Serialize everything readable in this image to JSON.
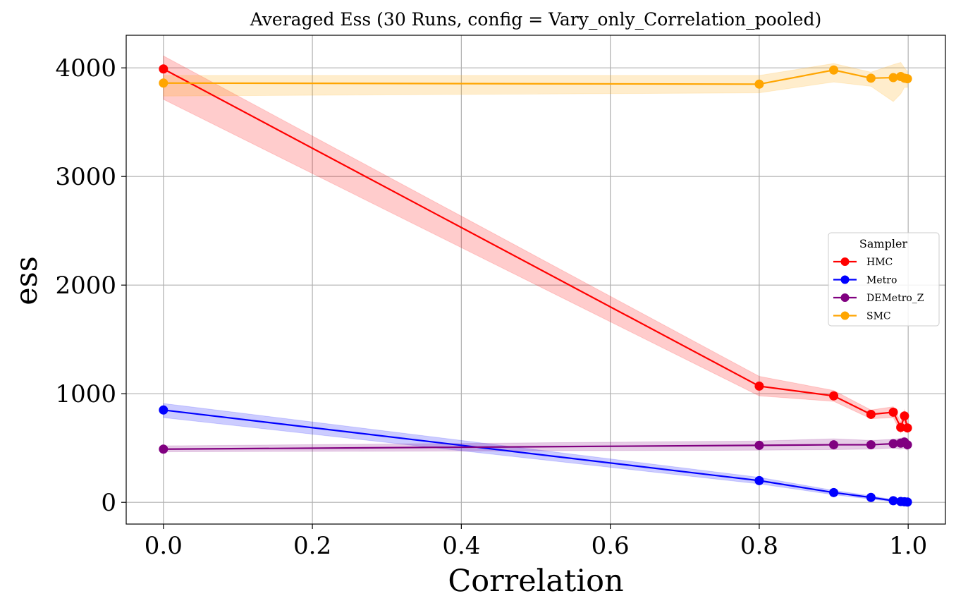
{
  "chart_data": {
    "type": "line",
    "title": "Averaged Ess (30 Runs, config = Vary_only_Correlation_pooled)",
    "xlabel": "Correlation",
    "ylabel": "ess",
    "xlim": [
      -0.05,
      1.05
    ],
    "ylim": [
      -200,
      4300
    ],
    "xticks": [
      0.0,
      0.2,
      0.4,
      0.6,
      0.8,
      1.0
    ],
    "xtick_labels": [
      "0.0",
      "0.2",
      "0.4",
      "0.6",
      "0.8",
      "1.0"
    ],
    "yticks": [
      0,
      1000,
      2000,
      3000,
      4000
    ],
    "ytick_labels": [
      "0",
      "1000",
      "2000",
      "3000",
      "4000"
    ],
    "grid": true,
    "legend": {
      "title": "Sampler",
      "placement": "center-right"
    },
    "x": [
      0.0,
      0.8,
      0.9,
      0.95,
      0.98,
      0.99,
      0.995,
      0.999
    ],
    "series": [
      {
        "name": "HMC",
        "color": "#ff0000",
        "values": [
          3990,
          1070,
          980,
          810,
          830,
          690,
          795,
          685
        ],
        "lower": [
          3710,
          980,
          930,
          770,
          780,
          640,
          740,
          640
        ],
        "upper": [
          4110,
          1160,
          1030,
          850,
          880,
          740,
          850,
          730
        ]
      },
      {
        "name": "Metro",
        "color": "#0000ff",
        "values": [
          850,
          200,
          90,
          45,
          15,
          8,
          5,
          3
        ],
        "lower": [
          780,
          170,
          70,
          30,
          5,
          2,
          1,
          0
        ],
        "upper": [
          910,
          230,
          110,
          60,
          25,
          14,
          10,
          6
        ]
      },
      {
        "name": "DEMetro_Z",
        "color": "#800080",
        "values": [
          490,
          525,
          530,
          530,
          540,
          545,
          555,
          530
        ],
        "lower": [
          465,
          480,
          485,
          490,
          500,
          490,
          500,
          480
        ],
        "upper": [
          520,
          565,
          585,
          570,
          580,
          590,
          600,
          580
        ]
      },
      {
        "name": "SMC",
        "color": "#ffa500",
        "values": [
          3860,
          3850,
          3980,
          3905,
          3910,
          3920,
          3905,
          3900
        ],
        "lower": [
          3740,
          3770,
          3870,
          3830,
          3690,
          3760,
          3820,
          3820
        ],
        "upper": [
          3930,
          3930,
          4040,
          3960,
          4030,
          4050,
          4000,
          3970
        ]
      }
    ]
  }
}
